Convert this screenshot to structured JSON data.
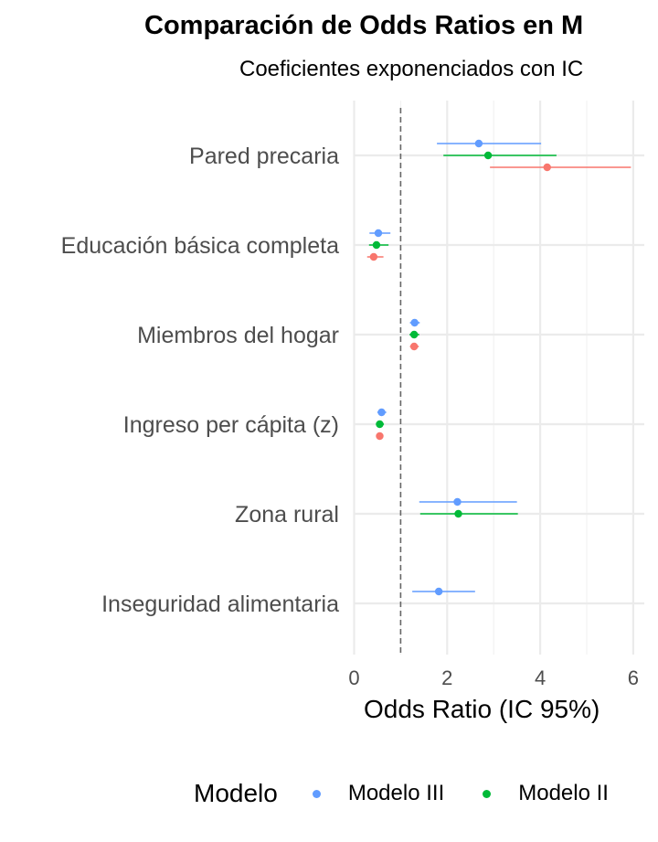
{
  "title": "Comparación de Odds Ratios en M",
  "subtitle": "Coeficientes exponenciados con IC",
  "chart_data": {
    "type": "scatter",
    "xlabel": "Odds Ratio (IC 95%)",
    "xlim": [
      -0.2,
      6.3
    ],
    "x_ticks": [
      0,
      2,
      4,
      6
    ],
    "reference_line": 1,
    "grid": true,
    "legend_title": "Modelo",
    "legend_position": "bottom",
    "categories": [
      "Pared precaria",
      "Educación básica completa",
      "Miembros del hogar",
      "Ingreso per cápita (z)",
      "Zona rural",
      "Inseguridad alimentaria"
    ],
    "series": [
      {
        "name": "Modelo III",
        "color": "#619CFF",
        "points": [
          {
            "category": "Pared precaria",
            "or": 2.68,
            "lo": 1.78,
            "hi": 4.02
          },
          {
            "category": "Educación básica completa",
            "or": 0.52,
            "lo": 0.33,
            "hi": 0.78
          },
          {
            "category": "Miembros del hogar",
            "or": 1.3,
            "lo": 1.2,
            "hi": 1.41
          },
          {
            "category": "Ingreso per cápita (z)",
            "or": 0.59,
            "lo": 0.5,
            "hi": 0.69
          },
          {
            "category": "Zona rural",
            "or": 2.22,
            "lo": 1.4,
            "hi": 3.5
          },
          {
            "category": "Inseguridad alimentaria",
            "or": 1.82,
            "lo": 1.25,
            "hi": 2.6
          }
        ]
      },
      {
        "name": "Modelo II",
        "color": "#00BA38",
        "points": [
          {
            "category": "Pared precaria",
            "or": 2.88,
            "lo": 1.92,
            "hi": 4.35
          },
          {
            "category": "Educación básica completa",
            "or": 0.48,
            "lo": 0.32,
            "hi": 0.74
          },
          {
            "category": "Miembros del hogar",
            "or": 1.29,
            "lo": 1.19,
            "hi": 1.4
          },
          {
            "category": "Ingreso per cápita (z)",
            "or": 0.55,
            "lo": 0.47,
            "hi": 0.64
          },
          {
            "category": "Zona rural",
            "or": 2.24,
            "lo": 1.42,
            "hi": 3.52
          }
        ]
      },
      {
        "name": "",
        "color": "#F8766D",
        "points": [
          {
            "category": "Pared precaria",
            "or": 4.15,
            "lo": 2.92,
            "hi": 5.95
          },
          {
            "category": "Educación básica completa",
            "or": 0.42,
            "lo": 0.28,
            "hi": 0.63
          },
          {
            "category": "Miembros del hogar",
            "or": 1.29,
            "lo": 1.2,
            "hi": 1.39
          },
          {
            "category": "Ingreso per cápita (z)",
            "or": 0.55,
            "lo": 0.48,
            "hi": 0.63
          }
        ]
      }
    ]
  }
}
